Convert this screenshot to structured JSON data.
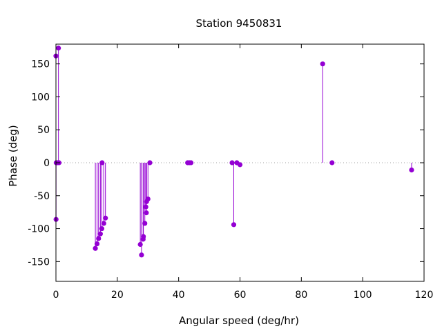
{
  "chart_data": {
    "type": "stem",
    "title": "Station 9450831",
    "xlabel": "Angular speed (deg/hr)",
    "ylabel": "Phase (deg)",
    "xlim": [
      0,
      120
    ],
    "ylim": [
      -180,
      180
    ],
    "xticks": [
      0,
      20,
      40,
      60,
      80,
      100,
      120
    ],
    "yticks": [
      -150,
      -100,
      -50,
      0,
      50,
      100,
      150
    ],
    "zero_line": "dotted",
    "grid": false,
    "legend": "none",
    "color": "#9400d3",
    "points": [
      {
        "x": 0.0,
        "y": 162
      },
      {
        "x": 0.04,
        "y": -86
      },
      {
        "x": 0.08,
        "y": 0
      },
      {
        "x": 0.5,
        "y": 0
      },
      {
        "x": 0.82,
        "y": 174
      },
      {
        "x": 1.0,
        "y": 0
      },
      {
        "x": 12.85,
        "y": -130
      },
      {
        "x": 13.4,
        "y": -123
      },
      {
        "x": 13.9,
        "y": -115
      },
      {
        "x": 14.49,
        "y": -108
      },
      {
        "x": 14.96,
        "y": -100
      },
      {
        "x": 15.04,
        "y": 0
      },
      {
        "x": 15.59,
        "y": -92
      },
      {
        "x": 16.14,
        "y": -84
      },
      {
        "x": 27.5,
        "y": -124
      },
      {
        "x": 27.9,
        "y": -140
      },
      {
        "x": 28.43,
        "y": -116
      },
      {
        "x": 28.51,
        "y": -112
      },
      {
        "x": 28.98,
        "y": -92
      },
      {
        "x": 29.3,
        "y": -67
      },
      {
        "x": 29.46,
        "y": -76
      },
      {
        "x": 29.53,
        "y": -59
      },
      {
        "x": 30.0,
        "y": -55
      },
      {
        "x": 30.63,
        "y": 0
      },
      {
        "x": 42.93,
        "y": 0
      },
      {
        "x": 43.48,
        "y": 0
      },
      {
        "x": 44.03,
        "y": 0
      },
      {
        "x": 57.42,
        "y": 0
      },
      {
        "x": 57.97,
        "y": -94
      },
      {
        "x": 58.98,
        "y": 0
      },
      {
        "x": 60.0,
        "y": -3
      },
      {
        "x": 86.95,
        "y": 150
      },
      {
        "x": 90.0,
        "y": 0
      },
      {
        "x": 115.94,
        "y": -11
      }
    ]
  }
}
